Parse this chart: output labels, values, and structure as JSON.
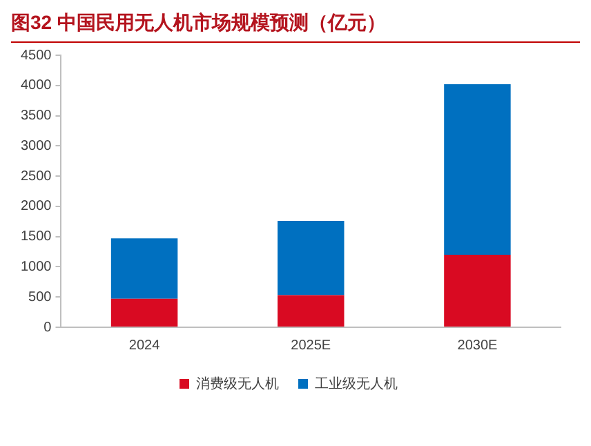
{
  "chart_data": {
    "type": "bar",
    "title": "图32  中国民用无人机市场规模预测（亿元）",
    "categories": [
      "2024",
      "2025E",
      "2030E"
    ],
    "series": [
      {
        "name": "消费级无人机",
        "color": "#d90a22",
        "values": [
          470,
          530,
          1200
        ]
      },
      {
        "name": "工业级无人机",
        "color": "#0070c0",
        "values": [
          1000,
          1230,
          2820
        ]
      }
    ],
    "stacked": true,
    "ylim": [
      0,
      4500
    ],
    "yticks": [
      0,
      500,
      1000,
      1500,
      2000,
      2500,
      3000,
      3500,
      4000,
      4500
    ],
    "grid": false,
    "legend": "bottom"
  }
}
